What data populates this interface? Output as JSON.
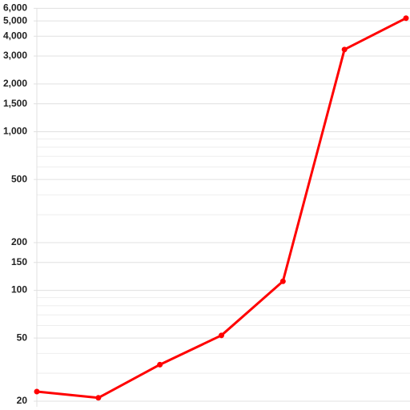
{
  "chart_data": {
    "type": "line",
    "categories": [
      null,
      null,
      null,
      null,
      null,
      null,
      null
    ],
    "series": [
      {
        "color": "#ff0000",
        "values": [
          23,
          21,
          34,
          52,
          114,
          3300,
          5200
        ]
      }
    ],
    "ylim": [
      20,
      6000
    ],
    "log_scale": true,
    "grid": true,
    "yticks": [
      20,
      50,
      100,
      {
        "value": 150,
        "label": "150"
      },
      200,
      500,
      {
        "value": 1000,
        "label": "1,000"
      },
      {
        "value": 1500,
        "label": "1,500"
      },
      {
        "value": 2000,
        "label": "2,000"
      },
      {
        "value": 3000,
        "label": "3,000"
      },
      {
        "value": 4000,
        "label": "4,000"
      },
      {
        "value": 5000,
        "label": "5,000"
      },
      {
        "value": 6000,
        "label": "6,000"
      }
    ],
    "minor_yticks": [
      30,
      40,
      60,
      70,
      80,
      90,
      300,
      400,
      600,
      700,
      800,
      900
    ]
  }
}
